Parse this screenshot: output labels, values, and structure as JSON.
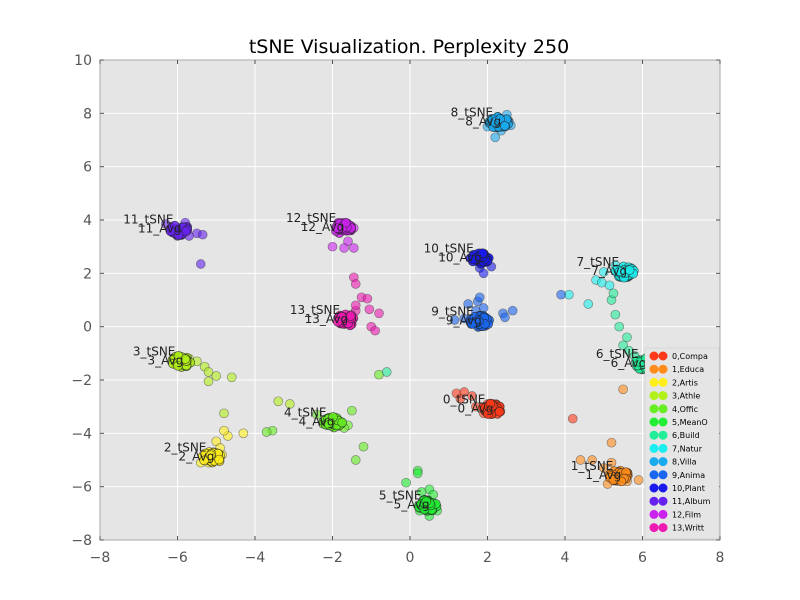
{
  "chart_data": {
    "type": "scatter",
    "title": "tSNE Visualization. Perplexity 250",
    "xlabel": "",
    "ylabel": "",
    "xlim": [
      -8,
      8
    ],
    "ylim": [
      -8,
      10
    ],
    "x_ticks": [
      -8,
      -6,
      -4,
      -2,
      0,
      2,
      4,
      6,
      8
    ],
    "y_ticks": [
      -8,
      -6,
      -4,
      -2,
      0,
      2,
      4,
      6,
      8,
      10
    ],
    "x_tick_labels": [
      "−8",
      "−6",
      "−4",
      "−2",
      "0",
      "2",
      "4",
      "6",
      "8"
    ],
    "y_tick_labels": [
      "−8",
      "−6",
      "−4",
      "−2",
      "0",
      "2",
      "4",
      "6",
      "8",
      "10"
    ],
    "grid": true,
    "legend_position": "right",
    "background": "#e5e5e5",
    "series": [
      {
        "name": "0,Compa",
        "color": "#ff3a1a",
        "center": [
          2.1,
          -3.1
        ],
        "tsne_label": "0_tSNE",
        "avg_label": "0_Avg",
        "outliers": [
          [
            1.2,
            -2.5
          ],
          [
            1.4,
            -2.45
          ],
          [
            1.6,
            -2.6
          ],
          [
            1.3,
            -2.7
          ],
          [
            1.7,
            -3.0
          ],
          [
            2.0,
            -2.9
          ],
          [
            4.2,
            -3.45
          ],
          [
            1.9,
            -3.25
          ]
        ]
      },
      {
        "name": "1,Educa",
        "color": "#ff8c1a",
        "center": [
          5.4,
          -5.6
        ],
        "tsne_label": "1_tSNE",
        "avg_label": "1_Avg",
        "outliers": [
          [
            5.5,
            -2.35
          ],
          [
            5.2,
            -4.35
          ],
          [
            4.4,
            -5.0
          ],
          [
            4.7,
            -5.0
          ],
          [
            5.0,
            -5.3
          ],
          [
            5.2,
            -5.1
          ],
          [
            5.6,
            -5.8
          ],
          [
            5.1,
            -5.9
          ],
          [
            5.9,
            -5.75
          ]
        ]
      },
      {
        "name": "2,Artis",
        "color": "#ffee1a",
        "center": [
          -5.1,
          -4.9
        ],
        "tsne_label": "2_tSNE",
        "avg_label": "2_Avg",
        "outliers": [
          [
            -4.7,
            -4.1
          ],
          [
            -4.8,
            -3.9
          ],
          [
            -4.3,
            -4.0
          ],
          [
            -5.0,
            -4.3
          ],
          [
            -5.4,
            -5.1
          ],
          [
            -5.2,
            -5.1
          ],
          [
            -4.85,
            -4.8
          ],
          [
            -4.9,
            -4.55
          ]
        ]
      },
      {
        "name": "3,Athle",
        "color": "#b2f01a",
        "center": [
          -5.9,
          -1.3
        ],
        "tsne_label": "3_tSNE",
        "avg_label": "3_Avg",
        "outliers": [
          [
            -5.5,
            -1.3
          ],
          [
            -5.3,
            -1.5
          ],
          [
            -5.2,
            -1.7
          ],
          [
            -5.0,
            -1.85
          ],
          [
            -4.6,
            -1.9
          ],
          [
            -5.2,
            -2.05
          ],
          [
            -5.7,
            -1.2
          ],
          [
            -4.8,
            -3.25
          ],
          [
            -3.4,
            -2.8
          ],
          [
            -3.1,
            -2.9
          ]
        ]
      },
      {
        "name": "4,Offic",
        "color": "#66ee22",
        "center": [
          -2.0,
          -3.6
        ],
        "tsne_label": "4_tSNE",
        "avg_label": "4_Avg",
        "outliers": [
          [
            -1.5,
            -3.15
          ],
          [
            -1.6,
            -3.7
          ],
          [
            -1.2,
            -4.5
          ],
          [
            -1.4,
            -5.0
          ],
          [
            -3.55,
            -3.9
          ],
          [
            -3.7,
            -3.95
          ],
          [
            -0.8,
            -1.8
          ],
          [
            -2.4,
            -3.3
          ],
          [
            -1.7,
            -3.8
          ]
        ]
      },
      {
        "name": "5,MeanO",
        "color": "#22ee33",
        "center": [
          0.45,
          -6.7
        ],
        "tsne_label": "5_tSNE",
        "avg_label": "5_Avg",
        "outliers": [
          [
            -0.1,
            -5.85
          ],
          [
            0.2,
            -5.4
          ],
          [
            0.2,
            -5.5
          ],
          [
            0.5,
            -6.1
          ],
          [
            0.6,
            -6.3
          ],
          [
            0.25,
            -6.9
          ],
          [
            0.5,
            -7.1
          ],
          [
            0.7,
            -6.9
          ],
          [
            0.3,
            -6.2
          ]
        ]
      },
      {
        "name": "6,Build",
        "color": "#22ee99",
        "center": [
          6.05,
          -1.4
        ],
        "tsne_label": "6_tSNE",
        "avg_label": "6_Avg",
        "outliers": [
          [
            5.3,
            0.45
          ],
          [
            5.4,
            0.0
          ],
          [
            5.6,
            -0.4
          ],
          [
            5.5,
            -0.7
          ],
          [
            5.65,
            -0.9
          ],
          [
            5.8,
            -1.1
          ],
          [
            6.2,
            -1.4
          ],
          [
            6.4,
            -1.55
          ],
          [
            5.2,
            1.0
          ],
          [
            5.25,
            1.25
          ],
          [
            -0.6,
            -1.7
          ]
        ]
      },
      {
        "name": "7,Natur",
        "color": "#1aeeee",
        "center": [
          5.55,
          2.05
        ],
        "tsne_label": "7_tSNE",
        "avg_label": "7_Avg",
        "outliers": [
          [
            4.8,
            1.75
          ],
          [
            4.95,
            1.65
          ],
          [
            5.15,
            1.55
          ],
          [
            5.0,
            2.05
          ],
          [
            5.35,
            2.15
          ],
          [
            4.6,
            0.85
          ],
          [
            4.1,
            1.2
          ],
          [
            5.3,
            2.3
          ],
          [
            5.7,
            2.2
          ]
        ]
      },
      {
        "name": "8,Villa",
        "color": "#1aaaee",
        "center": [
          2.3,
          7.65
        ],
        "tsne_label": "8_tSNE",
        "avg_label": "8_Avg",
        "outliers": [
          [
            2.2,
            7.1
          ],
          [
            2.0,
            7.5
          ],
          [
            2.35,
            7.35
          ],
          [
            2.6,
            7.55
          ],
          [
            2.5,
            7.95
          ],
          [
            2.1,
            7.8
          ],
          [
            2.55,
            7.7
          ]
        ]
      },
      {
        "name": "9,Anima",
        "color": "#1a66ee",
        "center": [
          1.8,
          0.2
        ],
        "tsne_label": "9_tSNE",
        "avg_label": "9_Avg",
        "outliers": [
          [
            1.75,
            0.95
          ],
          [
            1.8,
            1.1
          ],
          [
            1.5,
            0.85
          ],
          [
            1.7,
            0.6
          ],
          [
            1.9,
            0.7
          ],
          [
            2.4,
            0.5
          ],
          [
            2.45,
            0.35
          ],
          [
            2.65,
            0.6
          ],
          [
            1.15,
            0.25
          ],
          [
            1.4,
            0.3
          ],
          [
            3.9,
            1.2
          ]
        ]
      },
      {
        "name": "10,Plant",
        "color": "#1a1aee",
        "center": [
          1.8,
          2.55
        ],
        "tsne_label": "10_tSNE",
        "avg_label": "10_Avg",
        "outliers": [
          [
            1.8,
            2.2
          ],
          [
            1.9,
            2.0
          ],
          [
            2.1,
            2.25
          ],
          [
            1.75,
            2.45
          ],
          [
            1.8,
            2.75
          ]
        ]
      },
      {
        "name": "11,Album",
        "color": "#6622ee",
        "center": [
          -5.95,
          3.65
        ],
        "tsne_label": "11_tSNE",
        "avg_label": "11_Avg",
        "outliers": [
          [
            -5.4,
            2.35
          ],
          [
            -5.5,
            3.5
          ],
          [
            -5.35,
            3.45
          ],
          [
            -5.7,
            3.4
          ],
          [
            -6.1,
            3.55
          ],
          [
            -6.3,
            3.85
          ],
          [
            -5.8,
            3.9
          ],
          [
            -6.0,
            3.4
          ]
        ]
      },
      {
        "name": "12,Film",
        "color": "#cc22ee",
        "center": [
          -1.75,
          3.7
        ],
        "tsne_label": "12_tSNE",
        "avg_label": "12_Avg",
        "outliers": [
          [
            -2.0,
            3.0
          ],
          [
            -1.6,
            3.2
          ],
          [
            -1.7,
            2.95
          ],
          [
            -1.45,
            2.95
          ],
          [
            -1.45,
            3.7
          ],
          [
            -1.75,
            3.9
          ]
        ]
      },
      {
        "name": "13,Writt",
        "color": "#ee1ab2",
        "center": [
          -1.65,
          0.25
        ],
        "tsne_label": "13_tSNE",
        "avg_label": "13_Avg",
        "outliers": [
          [
            -1.45,
            1.85
          ],
          [
            -1.4,
            1.6
          ],
          [
            -1.25,
            1.1
          ],
          [
            -1.1,
            1.05
          ],
          [
            -1.05,
            0.65
          ],
          [
            -0.8,
            0.5
          ],
          [
            -1.0,
            0.0
          ],
          [
            -0.9,
            -0.15
          ],
          [
            -1.4,
            0.6
          ],
          [
            -1.4,
            0.8
          ]
        ]
      }
    ]
  }
}
